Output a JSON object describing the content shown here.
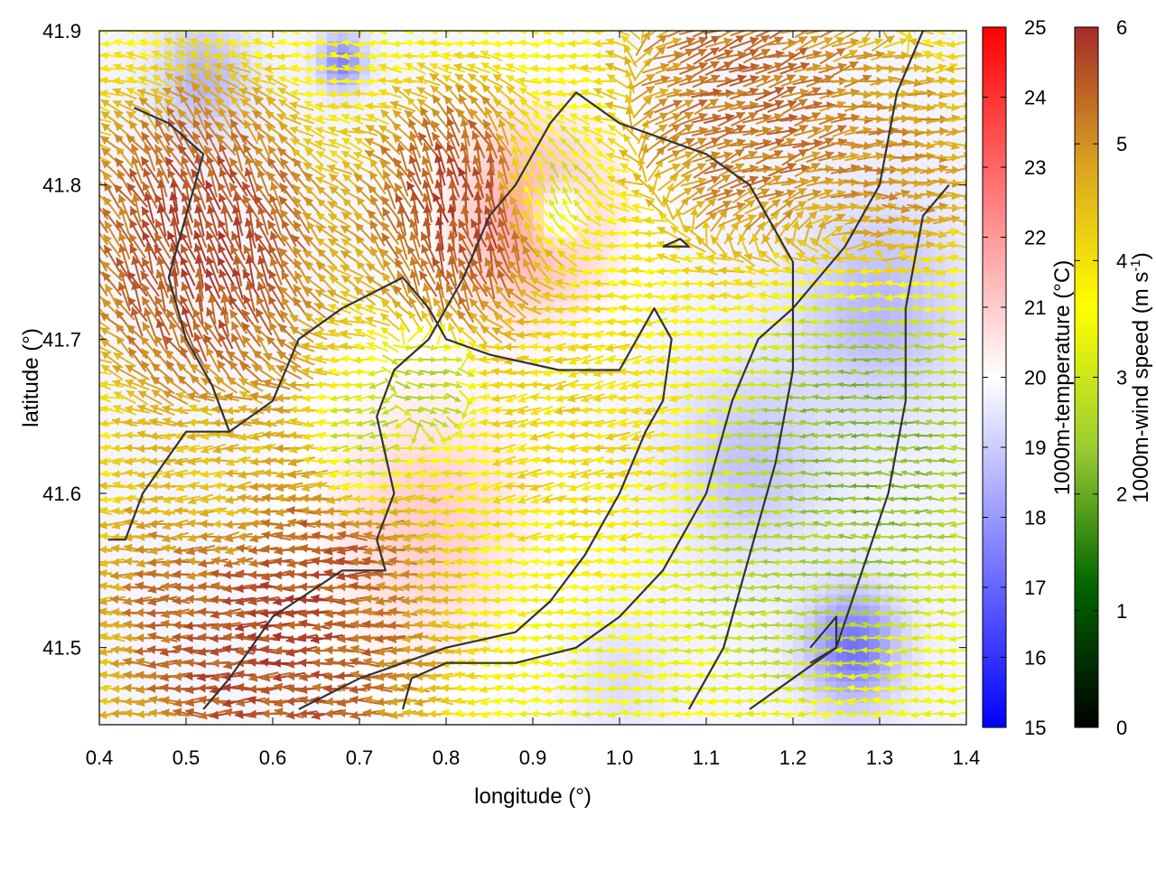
{
  "chart_data": {
    "type": "heatmap",
    "title": "",
    "xlabel": "longitude (°)",
    "ylabel": "latitude (°)",
    "xlim": [
      0.4,
      1.4
    ],
    "ylim": [
      41.45,
      41.9
    ],
    "x_ticks": [
      0.4,
      0.5,
      0.6,
      0.7,
      0.8,
      0.9,
      1.0,
      1.1,
      1.2,
      1.3,
      1.4
    ],
    "x_tick_labels": [
      "0.4",
      "0.5",
      "0.6",
      "0.7",
      "0.8",
      "0.9",
      "1.0",
      "1.1",
      "1.2",
      "1.3",
      "1.4"
    ],
    "y_ticks": [
      41.5,
      41.6,
      41.7,
      41.8,
      41.9
    ],
    "y_tick_labels": [
      "41.5",
      "41.6",
      "41.7",
      "41.8",
      "41.9"
    ],
    "temperature_colorbar": {
      "label": "1000m-temperature (°C)",
      "range": [
        15,
        25
      ],
      "ticks": [
        15,
        16,
        17,
        18,
        19,
        20,
        21,
        22,
        23,
        24,
        25
      ],
      "tick_labels": [
        "15",
        "16",
        "17",
        "18",
        "19",
        "20",
        "21",
        "22",
        "23",
        "24",
        "25"
      ],
      "colors": [
        "#0000ff",
        "#ffffff",
        "#ff0000"
      ]
    },
    "wind_colorbar": {
      "label_main": "1000m-wind speed (m s",
      "label_sup": "-1",
      "label_end": ")",
      "range": [
        0,
        6
      ],
      "ticks": [
        0,
        1,
        2,
        3,
        4,
        5,
        6
      ],
      "tick_labels": [
        "0",
        "1",
        "2",
        "3",
        "4",
        "5",
        "6"
      ],
      "colors": [
        "#000000",
        "#006400",
        "#9acd32",
        "#ffff00",
        "#daa520",
        "#a52a2a"
      ]
    },
    "temperature_field": {
      "background": 19.8,
      "features": [
        {
          "lon": 0.9,
          "lat": 41.78,
          "value": 21.8,
          "spread": 0.09
        },
        {
          "lon": 0.78,
          "lat": 41.58,
          "value": 21.0,
          "spread": 0.12
        },
        {
          "lon": 0.93,
          "lat": 41.78,
          "value": 18.0,
          "spread": 0.03
        },
        {
          "lon": 0.68,
          "lat": 41.88,
          "value": 17.5,
          "spread": 0.025
        },
        {
          "lon": 1.27,
          "lat": 41.5,
          "value": 17.2,
          "spread": 0.05
        },
        {
          "lon": 1.3,
          "lat": 41.72,
          "value": 18.6,
          "spread": 0.09
        },
        {
          "lon": 1.15,
          "lat": 41.62,
          "value": 18.8,
          "spread": 0.08
        },
        {
          "lon": 0.52,
          "lat": 41.87,
          "value": 18.5,
          "spread": 0.05
        },
        {
          "lon": 1.0,
          "lat": 41.48,
          "value": 19.3,
          "spread": 0.05
        }
      ]
    },
    "wind_field": {
      "zones": [
        {
          "lon": 0.52,
          "lat": 41.76,
          "speed": 6.0,
          "dir_deg": -100,
          "spread": 0.1
        },
        {
          "lon": 0.82,
          "lat": 41.78,
          "speed": 6.0,
          "dir_deg": -95,
          "spread": 0.08
        },
        {
          "lon": 0.6,
          "lat": 41.52,
          "speed": 6.0,
          "dir_deg": 180,
          "spread": 0.13
        },
        {
          "lon": 1.15,
          "lat": 41.86,
          "speed": 5.6,
          "dir_deg": -15,
          "spread": 0.1
        },
        {
          "lon": 1.32,
          "lat": 41.82,
          "speed": 5.2,
          "dir_deg": 0,
          "spread": 0.07
        },
        {
          "lon": 1.28,
          "lat": 41.62,
          "speed": 2.0,
          "dir_deg": 180,
          "spread": 0.09
        },
        {
          "lon": 1.2,
          "lat": 41.55,
          "speed": 2.6,
          "dir_deg": 180,
          "spread": 0.07
        },
        {
          "lon": 0.92,
          "lat": 41.8,
          "speed": 2.5,
          "dir_deg": -120,
          "spread": 0.04
        },
        {
          "lon": 0.78,
          "lat": 41.67,
          "speed": 2.4,
          "dir_deg": 10,
          "spread": 0.04
        },
        {
          "lon": 0.95,
          "lat": 41.65,
          "speed": 4.2,
          "dir_deg": 170,
          "spread": 0.08
        },
        {
          "lon": 0.55,
          "lat": 41.6,
          "speed": 4.0,
          "dir_deg": 170,
          "spread": 0.06
        },
        {
          "lon": 0.7,
          "lat": 41.63,
          "speed": 2.3,
          "dir_deg": 170,
          "spread": 0.04
        }
      ]
    },
    "contours": [
      [
        [
          0.41,
          41.57
        ],
        [
          0.43,
          41.57
        ],
        [
          0.45,
          41.6
        ],
        [
          0.5,
          41.64
        ],
        [
          0.55,
          41.64
        ],
        [
          0.6,
          41.66
        ],
        [
          0.63,
          41.7
        ],
        [
          0.68,
          41.72
        ],
        [
          0.75,
          41.74
        ],
        [
          0.78,
          41.72
        ],
        [
          0.8,
          41.7
        ],
        [
          0.85,
          41.69
        ],
        [
          0.93,
          41.68
        ],
        [
          1.0,
          41.68
        ],
        [
          1.04,
          41.72
        ],
        [
          1.06,
          41.7
        ],
        [
          1.05,
          41.66
        ],
        [
          1.03,
          41.64
        ],
        [
          1.0,
          41.6
        ],
        [
          0.96,
          41.56
        ],
        [
          0.92,
          41.53
        ],
        [
          0.88,
          41.51
        ],
        [
          0.8,
          41.5
        ],
        [
          0.7,
          41.48
        ],
        [
          0.63,
          41.46
        ]
      ],
      [
        [
          0.52,
          41.46
        ],
        [
          0.55,
          41.48
        ],
        [
          0.6,
          41.52
        ],
        [
          0.68,
          41.55
        ],
        [
          0.73,
          41.55
        ],
        [
          0.72,
          41.57
        ],
        [
          0.74,
          41.6
        ],
        [
          0.72,
          41.65
        ],
        [
          0.74,
          41.68
        ],
        [
          0.78,
          41.7
        ],
        [
          0.82,
          41.74
        ],
        [
          0.85,
          41.78
        ],
        [
          0.88,
          41.8
        ],
        [
          0.92,
          41.84
        ],
        [
          0.95,
          41.86
        ],
        [
          1.0,
          41.84
        ],
        [
          1.05,
          41.83
        ],
        [
          1.1,
          41.82
        ],
        [
          1.15,
          41.8
        ],
        [
          1.2,
          41.75
        ],
        [
          1.2,
          41.68
        ],
        [
          1.18,
          41.62
        ],
        [
          1.15,
          41.56
        ],
        [
          1.12,
          41.5
        ],
        [
          1.08,
          41.46
        ]
      ],
      [
        [
          0.44,
          41.85
        ],
        [
          0.48,
          41.84
        ],
        [
          0.52,
          41.82
        ],
        [
          0.5,
          41.78
        ],
        [
          0.48,
          41.74
        ],
        [
          0.5,
          41.7
        ],
        [
          0.53,
          41.67
        ],
        [
          0.55,
          41.64
        ]
      ],
      [
        [
          0.75,
          41.46
        ],
        [
          0.76,
          41.48
        ],
        [
          0.8,
          41.49
        ],
        [
          0.88,
          41.49
        ],
        [
          0.95,
          41.5
        ],
        [
          1.0,
          41.52
        ],
        [
          1.05,
          41.55
        ],
        [
          1.1,
          41.6
        ],
        [
          1.13,
          41.66
        ],
        [
          1.16,
          41.7
        ],
        [
          1.2,
          41.72
        ],
        [
          1.26,
          41.76
        ],
        [
          1.3,
          41.8
        ],
        [
          1.32,
          41.86
        ],
        [
          1.35,
          41.9
        ]
      ],
      [
        [
          1.22,
          41.49
        ],
        [
          1.25,
          41.5
        ],
        [
          1.25,
          41.52
        ],
        [
          1.22,
          41.5
        ]
      ],
      [
        [
          1.05,
          41.76
        ],
        [
          1.07,
          41.765
        ],
        [
          1.08,
          41.76
        ],
        [
          1.05,
          41.76
        ]
      ],
      [
        [
          1.15,
          41.46
        ],
        [
          1.2,
          41.48
        ],
        [
          1.25,
          41.5
        ],
        [
          1.28,
          41.55
        ],
        [
          1.31,
          41.6
        ],
        [
          1.33,
          41.66
        ],
        [
          1.33,
          41.72
        ],
        [
          1.35,
          41.78
        ],
        [
          1.38,
          41.8
        ]
      ]
    ]
  }
}
